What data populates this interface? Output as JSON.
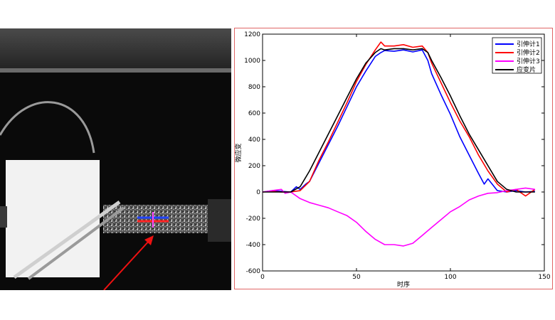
{
  "photo": {
    "marker_colors": {
      "top": "#2244ff",
      "bottom": "#ff2222",
      "cross": "#ff44ff",
      "arrow": "#ee1111"
    }
  },
  "chart_data": {
    "type": "line",
    "xlabel": "时序",
    "ylabel": "微应变",
    "xlim": [
      0,
      150
    ],
    "ylim": [
      -600,
      1200
    ],
    "xticks": [
      0,
      50,
      100,
      150
    ],
    "yticks": [
      -600,
      -400,
      -200,
      0,
      200,
      400,
      600,
      800,
      1000,
      1200
    ],
    "grid": false,
    "legend_position": "top-right",
    "series": [
      {
        "name": "引伸计1",
        "color": "#0000ff",
        "x": [
          0,
          5,
          10,
          15,
          18,
          20,
          23,
          25,
          30,
          35,
          40,
          45,
          50,
          55,
          60,
          63,
          65,
          70,
          75,
          80,
          85,
          88,
          90,
          95,
          100,
          105,
          110,
          115,
          118,
          120,
          125,
          130,
          135,
          140,
          145
        ],
        "y": [
          0,
          10,
          5,
          0,
          40,
          20,
          60,
          80,
          220,
          360,
          500,
          650,
          800,
          920,
          1030,
          1060,
          1075,
          1070,
          1080,
          1065,
          1080,
          1000,
          900,
          740,
          590,
          420,
          280,
          140,
          60,
          100,
          10,
          0,
          10,
          0,
          5
        ]
      },
      {
        "name": "引伸计2",
        "color": "#ff0000",
        "x": [
          0,
          5,
          10,
          15,
          20,
          25,
          30,
          35,
          40,
          45,
          50,
          55,
          60,
          63,
          65,
          70,
          75,
          80,
          85,
          88,
          90,
          95,
          100,
          105,
          110,
          115,
          120,
          125,
          130,
          135,
          140,
          145
        ],
        "y": [
          0,
          5,
          0,
          0,
          10,
          80,
          240,
          380,
          530,
          680,
          840,
          970,
          1080,
          1140,
          1110,
          1110,
          1120,
          1100,
          1110,
          1060,
          980,
          830,
          680,
          540,
          420,
          280,
          160,
          60,
          0,
          20,
          -30,
          20
        ]
      },
      {
        "name": "引伸计3",
        "color": "#ff00ff",
        "x": [
          0,
          5,
          10,
          12,
          15,
          20,
          25,
          30,
          35,
          40,
          45,
          50,
          55,
          60,
          65,
          70,
          75,
          80,
          85,
          90,
          95,
          100,
          105,
          110,
          115,
          120,
          125,
          130,
          135,
          140,
          145
        ],
        "y": [
          0,
          10,
          20,
          -10,
          0,
          -50,
          -80,
          -100,
          -120,
          -150,
          -180,
          -230,
          -300,
          -360,
          -400,
          -400,
          -410,
          -390,
          -330,
          -270,
          -210,
          -150,
          -110,
          -60,
          -30,
          -10,
          -5,
          10,
          20,
          30,
          20
        ]
      },
      {
        "name": "应变片",
        "color": "#000000",
        "x": [
          0,
          5,
          10,
          15,
          20,
          25,
          30,
          35,
          40,
          45,
          50,
          55,
          60,
          63,
          65,
          70,
          75,
          80,
          85,
          88,
          90,
          95,
          100,
          105,
          110,
          115,
          120,
          125,
          130,
          135,
          140,
          145
        ],
        "y": [
          0,
          0,
          0,
          0,
          40,
          160,
          300,
          440,
          580,
          720,
          860,
          980,
          1060,
          1090,
          1080,
          1090,
          1090,
          1080,
          1090,
          1060,
          1000,
          870,
          730,
          580,
          440,
          320,
          200,
          80,
          20,
          0,
          0,
          0
        ]
      }
    ]
  }
}
